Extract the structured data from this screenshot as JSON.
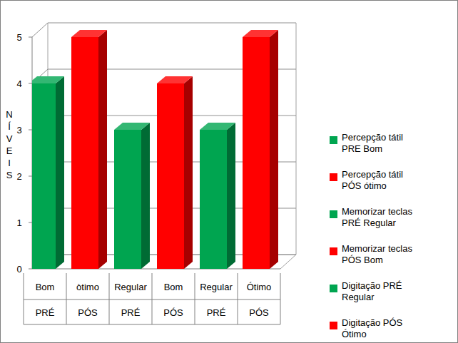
{
  "chart_data": {
    "type": "bar",
    "y_label": "NÍVEIS",
    "categories": [
      "Bom",
      "òtimo",
      "Regular",
      "Bom",
      "Regular",
      "Ótimo"
    ],
    "category_groups": [
      "PRÉ",
      "PÓS",
      "PRÉ",
      "PÓS",
      "PRÉ",
      "PÓS"
    ],
    "series": [
      {
        "name": "Percepção tátil PRE Bom",
        "color": "#00a550",
        "values": [
          4,
          null,
          null,
          null,
          null,
          null
        ]
      },
      {
        "name": "Percepção tátil PÓS ótimo",
        "color": "#ff0000",
        "values": [
          null,
          5,
          null,
          null,
          null,
          null
        ]
      },
      {
        "name": "Memorizar teclas PRÉ Regular",
        "color": "#00a550",
        "values": [
          null,
          null,
          3,
          null,
          null,
          null
        ]
      },
      {
        "name": "Memorizar teclas PÓS Bom",
        "color": "#ff0000",
        "values": [
          null,
          null,
          null,
          4,
          null,
          null
        ]
      },
      {
        "name": "Digitação PRÉ Regular",
        "color": "#00a550",
        "values": [
          null,
          null,
          null,
          null,
          3,
          null
        ]
      },
      {
        "name": "Digitação PÓS Ótimo",
        "color": "#ff0000",
        "values": [
          null,
          null,
          null,
          null,
          null,
          5
        ]
      }
    ],
    "ylim": [
      0,
      5
    ],
    "yticks": [
      0,
      1,
      2,
      3,
      4,
      5
    ],
    "grid": true
  }
}
